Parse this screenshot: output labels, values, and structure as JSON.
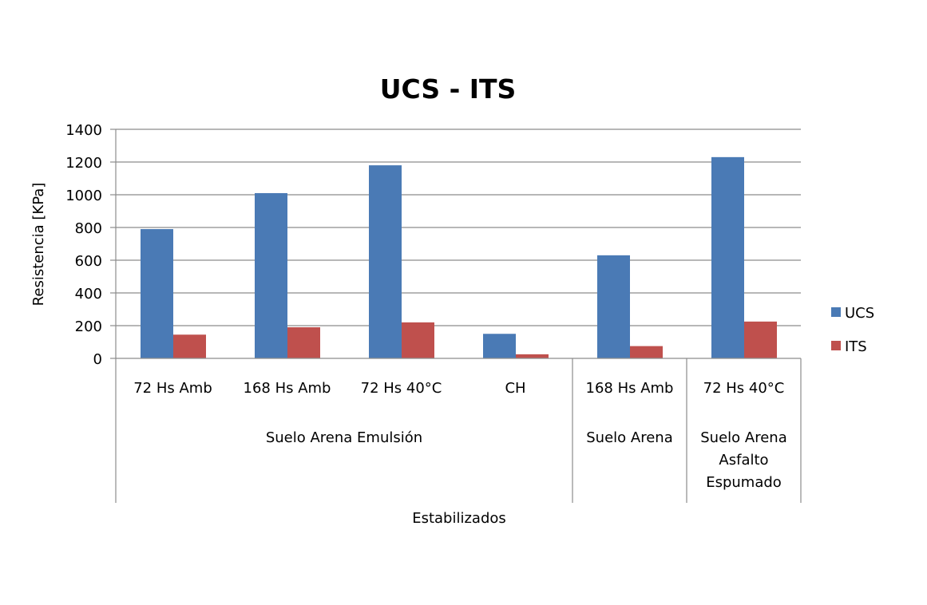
{
  "chart_data": {
    "type": "bar",
    "title": "UCS - ITS",
    "ylabel": "Resistencia [KPa]",
    "xlabel": "Estabilizados",
    "ylim": [
      0,
      1400
    ],
    "yticks": [
      0,
      200,
      400,
      600,
      800,
      1000,
      1200,
      1400
    ],
    "ytick_labels": [
      "0",
      "200",
      "400",
      "600",
      "800",
      "1000",
      "1200",
      "1400"
    ],
    "categories": [
      "72 Hs Amb",
      "168 Hs Amb",
      "72 Hs 40°C",
      "CH",
      "168 Hs Amb",
      "72 Hs 40°C"
    ],
    "groups": [
      {
        "label_lines": [
          "Suelo Arena Emulsión"
        ],
        "start": 0,
        "end": 3
      },
      {
        "label_lines": [
          "Suelo Arena"
        ],
        "start": 4,
        "end": 4
      },
      {
        "label_lines": [
          "Suelo Arena",
          "Asfalto",
          "Espumado"
        ],
        "start": 5,
        "end": 5
      }
    ],
    "series": [
      {
        "name": "UCS",
        "color": "#4a7ab5",
        "values": [
          790,
          1010,
          1180,
          150,
          630,
          1230
        ]
      },
      {
        "name": "ITS",
        "color": "#bf504d",
        "values": [
          145,
          190,
          220,
          25,
          75,
          225
        ]
      }
    ],
    "grid": true,
    "legend_position": "right"
  }
}
